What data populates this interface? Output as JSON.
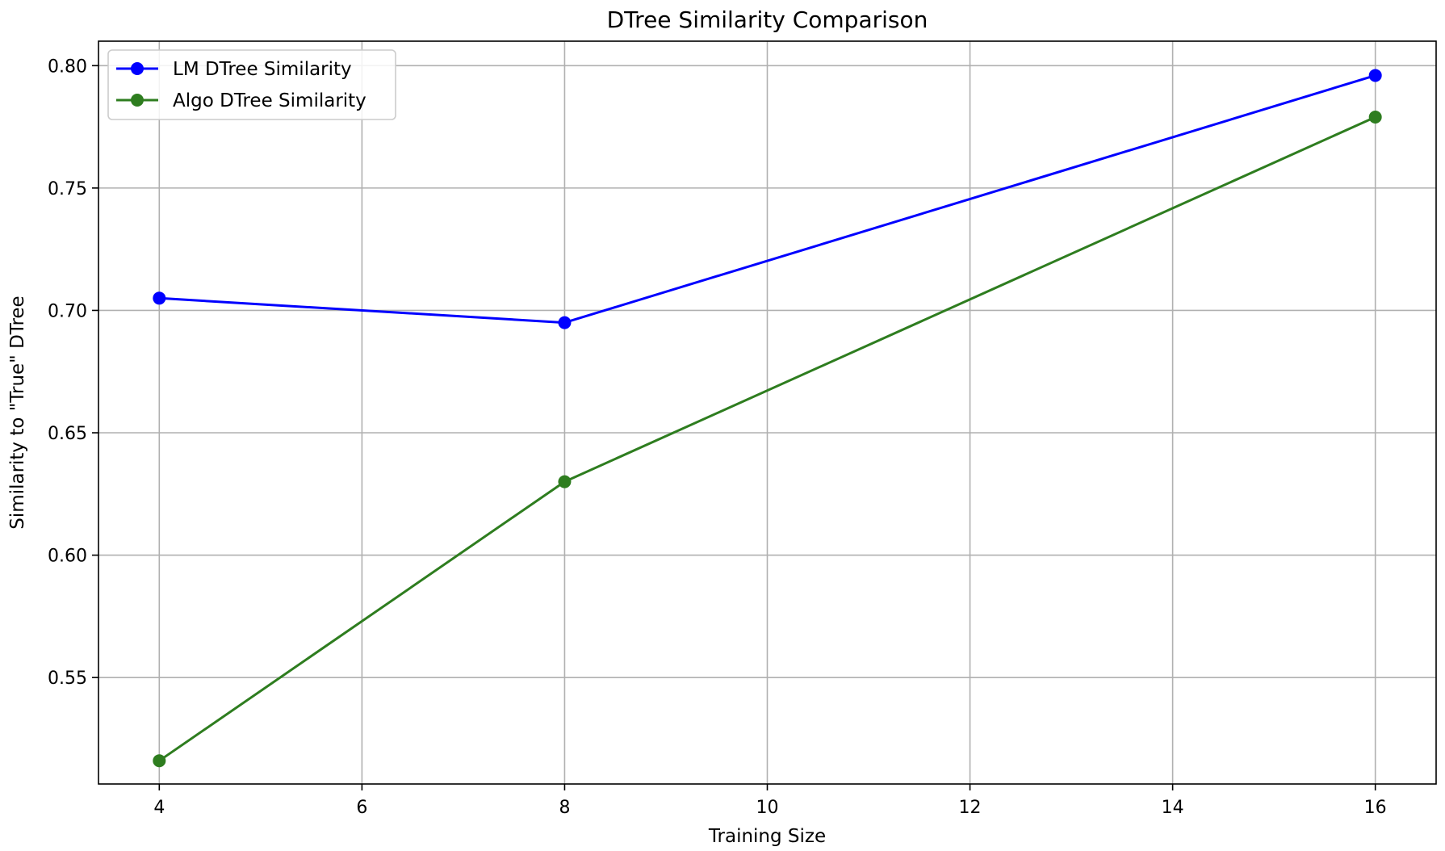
{
  "chart_data": {
    "type": "line",
    "title": "DTree Similarity Comparison",
    "xlabel": "Training Size",
    "ylabel": "Similarity to \"True\" DTree",
    "x": [
      4,
      8,
      16
    ],
    "xlim": [
      3.4,
      16.6
    ],
    "ylim": [
      0.5065,
      0.81
    ],
    "xticks": [
      4,
      6,
      8,
      10,
      12,
      14,
      16
    ],
    "yticks": [
      0.55,
      0.6,
      0.65,
      0.7,
      0.75,
      0.8
    ],
    "ytick_labels": [
      "0.55",
      "0.60",
      "0.65",
      "0.70",
      "0.75",
      "0.80"
    ],
    "grid": true,
    "legend_position": "top-left",
    "series": [
      {
        "name": "LM DTree Similarity",
        "values": [
          0.705,
          0.695,
          0.796
        ],
        "color": "#0000ff",
        "marker": "circle"
      },
      {
        "name": "Algo DTree Similarity",
        "values": [
          0.516,
          0.63,
          0.779
        ],
        "color": "#2e7d1f",
        "marker": "circle"
      }
    ]
  }
}
